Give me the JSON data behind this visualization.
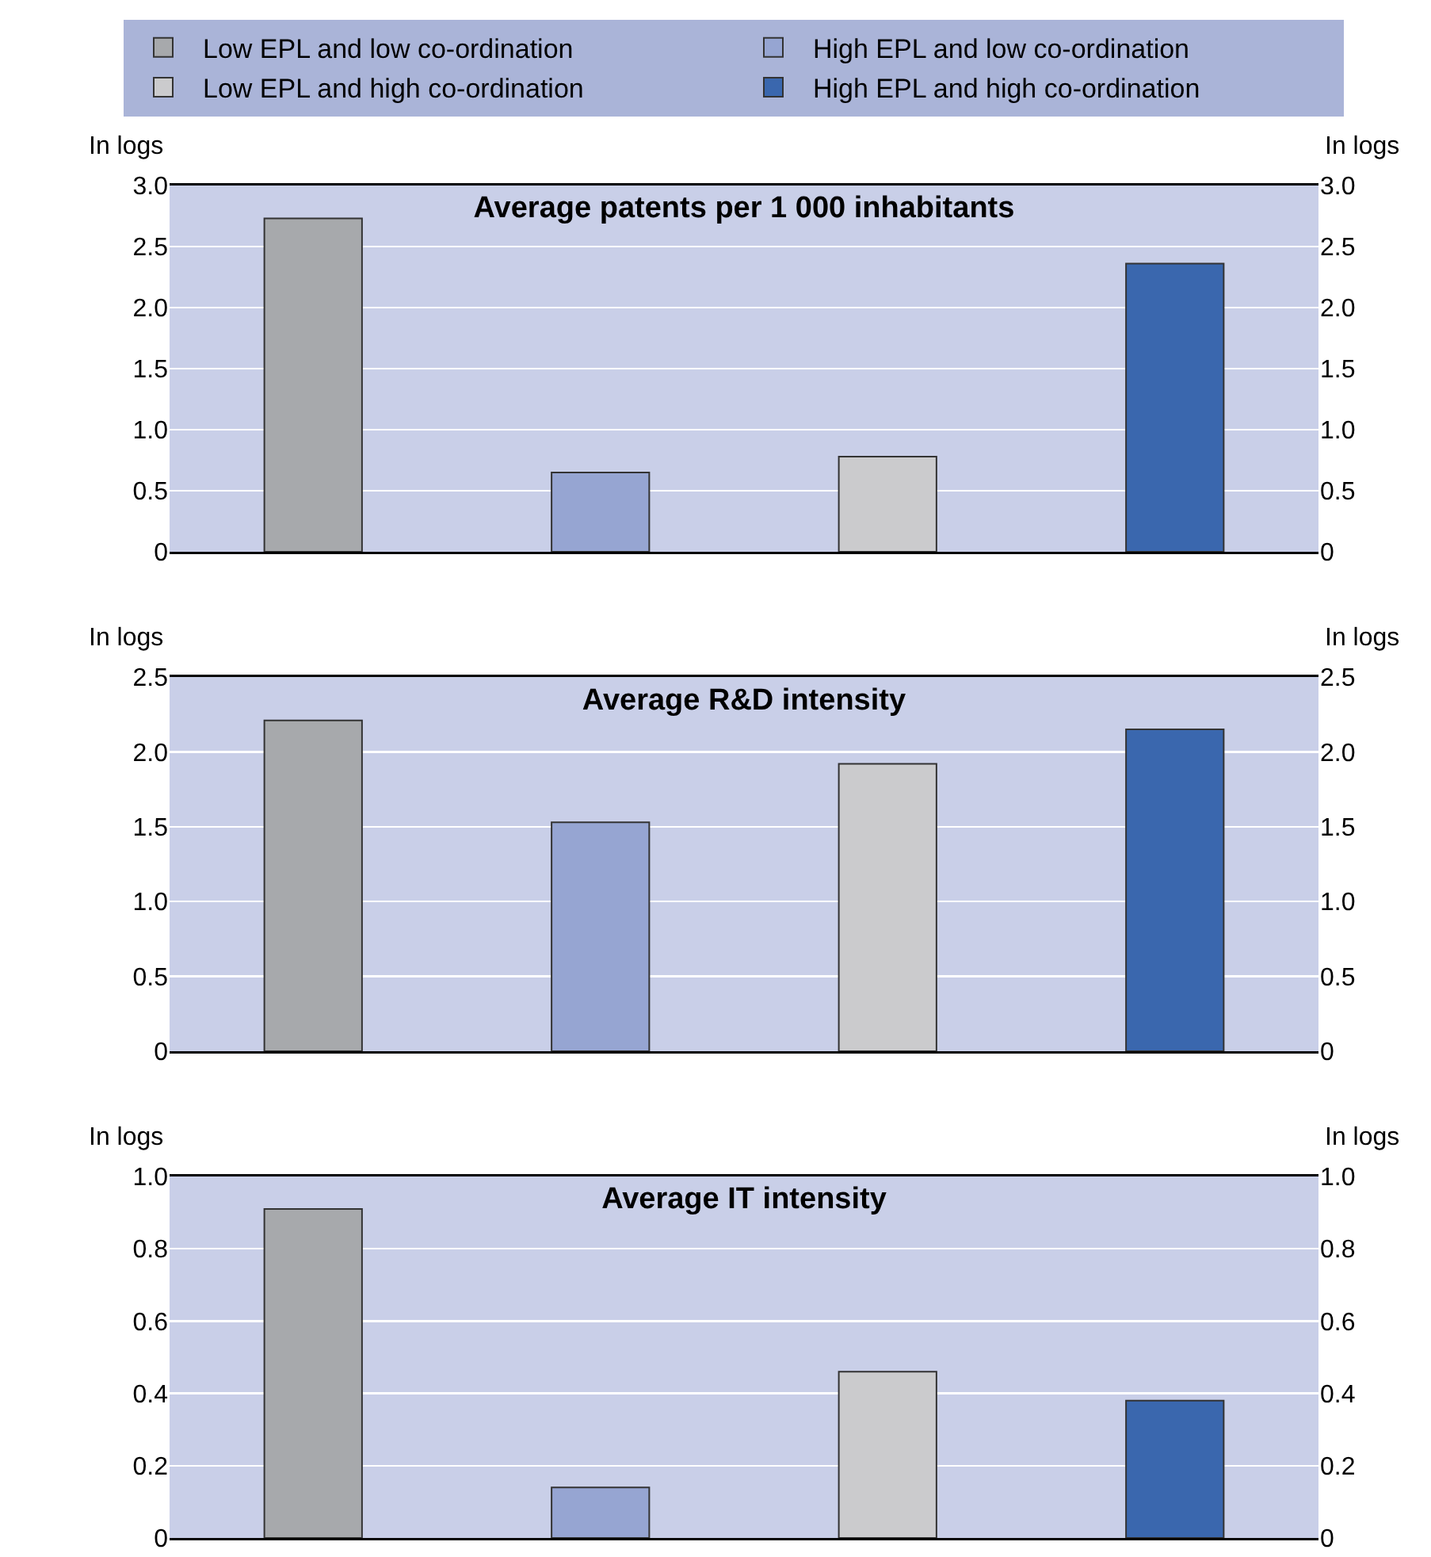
{
  "chart_data": [
    {
      "type": "bar",
      "title": "Average patents per 1 000 inhabitants",
      "ylabel": "In logs",
      "y2label": "In logs",
      "categories": [
        null
      ],
      "series": [
        {
          "name": "Low EPL and low co-ordination",
          "color": "#a7a9ac",
          "values": [
            2.73
          ]
        },
        {
          "name": "High EPL and low co-ordination",
          "color": "#96a5d2",
          "values": [
            0.65
          ]
        },
        {
          "name": "Low EPL and high co-ordination",
          "color": "#cbcbcd",
          "values": [
            0.78
          ]
        },
        {
          "name": "High EPL and high co-ordination",
          "color": "#3a67ae",
          "values": [
            2.36
          ]
        }
      ],
      "ylim": [
        0,
        3
      ],
      "yticks": [
        0,
        {
          "value": 0.5,
          "label": "0.5"
        },
        {
          "value": 1,
          "label": "1.0"
        },
        {
          "value": 1.5,
          "label": "1.5"
        },
        {
          "value": 2,
          "label": "2.0"
        },
        {
          "value": 2.5,
          "label": "2.5"
        },
        {
          "value": 3,
          "label": "3.0"
        }
      ],
      "y2lim": [
        0,
        3
      ],
      "y2ticks": [
        0,
        {
          "value": 0.5,
          "label": "0.5"
        },
        {
          "value": 1,
          "label": "1.0"
        },
        {
          "value": 1.5,
          "label": "1.5"
        },
        {
          "value": 2,
          "label": "2.0"
        },
        {
          "value": 2.5,
          "label": "2.5"
        },
        {
          "value": 3,
          "label": "3.0"
        }
      ],
      "grid": "y",
      "legend": "top"
    },
    {
      "type": "bar",
      "title": "Average R&D intensity",
      "ylabel": "In logs",
      "y2label": "In logs",
      "categories": [
        null
      ],
      "series": [
        {
          "color": "#a7a9ac",
          "values": [
            2.21
          ]
        },
        {
          "color": "#96a5d2",
          "values": [
            1.53
          ]
        },
        {
          "color": "#cbcbcd",
          "values": [
            1.92
          ]
        },
        {
          "color": "#3a67ae",
          "values": [
            2.15
          ]
        }
      ],
      "ylim": [
        0,
        2.5
      ],
      "yticks": [
        0,
        {
          "value": 0.5,
          "label": "0.5"
        },
        {
          "value": 1,
          "label": "1.0"
        },
        {
          "value": 1.5,
          "label": "1.5"
        },
        {
          "value": 2,
          "label": "2.0"
        },
        {
          "value": 2.5,
          "label": "2.5"
        }
      ],
      "y2lim": [
        0,
        2.5
      ],
      "y2ticks": [
        0,
        {
          "value": 0.5,
          "label": "0.5"
        },
        {
          "value": 1,
          "label": "1.0"
        },
        {
          "value": 1.5,
          "label": "1.5"
        },
        {
          "value": 2,
          "label": "2.0"
        },
        {
          "value": 2.5,
          "label": "2.5"
        }
      ],
      "grid": "y"
    },
    {
      "type": "bar",
      "title": "Average IT intensity",
      "ylabel": "In logs",
      "y2label": "In logs",
      "categories": [
        null
      ],
      "series": [
        {
          "color": "#a7a9ac",
          "values": [
            0.91
          ]
        },
        {
          "color": "#96a5d2",
          "values": [
            0.14
          ]
        },
        {
          "color": "#cbcbcd",
          "values": [
            0.46
          ]
        },
        {
          "color": "#3a67ae",
          "values": [
            0.38
          ]
        }
      ],
      "ylim": [
        0,
        1
      ],
      "yticks": [
        0,
        0.2,
        0.4,
        0.6,
        0.8,
        {
          "value": 1,
          "label": "1.0"
        }
      ],
      "y2lim": [
        0,
        1
      ],
      "y2ticks": [
        0,
        0.2,
        0.4,
        0.6,
        0.8,
        {
          "value": 1,
          "label": "1.0"
        }
      ],
      "grid": "y"
    }
  ]
}
